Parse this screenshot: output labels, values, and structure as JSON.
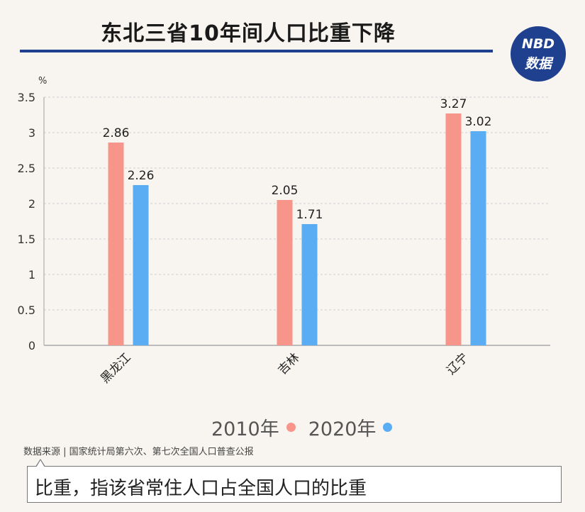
{
  "header": {
    "title": "东北三省10年间人口比重下降",
    "logo_line1": "NBD",
    "logo_line2": "数据"
  },
  "chart_data": {
    "type": "bar",
    "ylabel": "%",
    "ylim": [
      0,
      3.5
    ],
    "yticks": [
      "0",
      "0.5",
      "1",
      "1.5",
      "2",
      "2.5",
      "3",
      "3.5"
    ],
    "categories": [
      "黑龙江",
      "吉林",
      "辽宁"
    ],
    "series": [
      {
        "name": "2010年",
        "color": "#f7958a",
        "values": [
          2.86,
          2.05,
          3.27
        ],
        "labels": [
          "2.86",
          "2.05",
          "3.27"
        ]
      },
      {
        "name": "2020年",
        "color": "#5aacf3",
        "values": [
          2.26,
          1.71,
          3.02
        ],
        "labels": [
          "2.26",
          "1.71",
          "3.02"
        ]
      }
    ],
    "grid": "dashed-horizontal",
    "legend": "bottom-center"
  },
  "source": "数据来源 | 国家统计局第六次、第七次全国人口普查公报",
  "note": "比重，指该省常住人口占全国人口的比重"
}
